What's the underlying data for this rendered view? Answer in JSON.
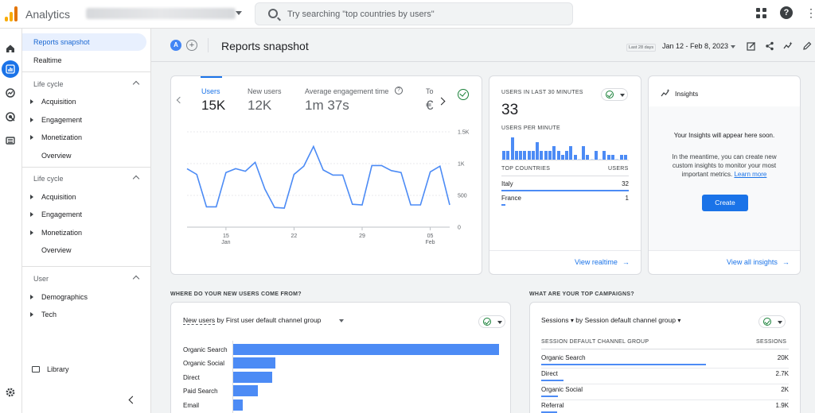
{
  "topbar": {
    "app_name": "Analytics",
    "account_name": "Tag Manager Italia - Server ...",
    "search_placeholder": "Try searching \"top countries by users\""
  },
  "sidebar": {
    "items": [
      {
        "label": "Reports snapshot",
        "active": true
      },
      {
        "label": "Realtime",
        "active": false
      }
    ],
    "section1": {
      "title": "Life cycle",
      "items": [
        "Acquisition",
        "Engagement",
        "Monetization"
      ],
      "overview": "Overview"
    },
    "section2": {
      "title": "Life cycle",
      "items": [
        "Acquisition",
        "Engagement",
        "Monetization"
      ],
      "overview": "Overview"
    },
    "section3": {
      "title": "User",
      "items": [
        "Demographics",
        "Tech"
      ]
    },
    "library": "Library"
  },
  "header": {
    "avatar_letter": "A",
    "add_label": "+",
    "title": "Reports snapshot",
    "date_chip": "Last 28 days",
    "date_range": "Jan 12 - Feb 8, 2023"
  },
  "metrics_card": {
    "tabs": [
      {
        "label": "Users",
        "value": "15K",
        "active": true
      },
      {
        "label": "New users",
        "value": "12K",
        "active": false
      },
      {
        "label": "Average engagement time",
        "value": "1m 37s",
        "active": false
      },
      {
        "label": "To",
        "value": "€",
        "active": false
      }
    ]
  },
  "chart_data": {
    "type": "line",
    "title": "",
    "xlabel": "",
    "ylabel": "",
    "x_ticks": [
      {
        "label": "15",
        "sub": "Jan",
        "day": 4
      },
      {
        "label": "22",
        "sub": "",
        "day": 11
      },
      {
        "label": "29",
        "sub": "",
        "day": 18
      },
      {
        "label": "05",
        "sub": "Feb",
        "day": 25
      }
    ],
    "y_ticks": [
      "1.5K",
      "1K",
      "500",
      "0"
    ],
    "ylim": [
      0,
      1500
    ],
    "series": [
      {
        "values": [
          920,
          830,
          320,
          320,
          860,
          920,
          880,
          1020,
          600,
          310,
          300,
          830,
          960,
          1270,
          900,
          820,
          820,
          360,
          350,
          970,
          970,
          890,
          860,
          350,
          350,
          870,
          960,
          350
        ]
      }
    ],
    "grid": true,
    "color": "#4c8bf5"
  },
  "realtime_card": {
    "title": "USERS IN LAST 30 MINUTES",
    "value": "33",
    "per_minute_label": "USERS PER MINUTE",
    "per_minute": [
      2,
      2,
      5,
      2,
      2,
      2,
      2,
      2,
      4,
      2,
      2,
      2,
      3,
      2,
      1,
      2,
      3,
      1,
      0,
      3,
      1,
      0,
      2,
      0,
      2,
      1,
      1,
      0,
      1,
      1
    ],
    "countries_header": "TOP COUNTRIES",
    "users_header": "USERS",
    "countries": [
      {
        "name": "Italy",
        "value": "32",
        "fraction": 1.0
      },
      {
        "name": "France",
        "value": "1",
        "fraction": 0.03
      }
    ],
    "link": "View realtime"
  },
  "insights_card": {
    "title": "Insights",
    "headline": "Your Insights will appear here soon.",
    "body": "In the meantime, you can create new custom insights to monitor your most important metrics.",
    "learn_more": "Learn more",
    "create_button": "Create",
    "link": "View all insights"
  },
  "new_users_section": {
    "heading": "WHERE DO YOUR NEW USERS COME FROM?",
    "metric": "New users",
    "dimension": "by First user default channel group",
    "bars": [
      {
        "label": "Organic Search",
        "fraction": 1.0
      },
      {
        "label": "Organic Social",
        "fraction": 0.16
      },
      {
        "label": "Direct",
        "fraction": 0.15
      },
      {
        "label": "Paid Search",
        "fraction": 0.095
      },
      {
        "label": "Email",
        "fraction": 0.04
      }
    ],
    "color": "#4c8bf5"
  },
  "campaigns_section": {
    "heading": "WHAT ARE YOUR TOP CAMPAIGNS?",
    "metric": "Sessions",
    "dimension": "by Session default channel group",
    "col_left": "SESSION DEFAULT CHANNEL GROUP",
    "col_right": "SESSIONS",
    "rows": [
      {
        "label": "Organic Search",
        "value": "20K",
        "fraction": 1.0
      },
      {
        "label": "Direct",
        "value": "2.7K",
        "fraction": 0.135
      },
      {
        "label": "Organic Social",
        "value": "2K",
        "fraction": 0.1
      },
      {
        "label": "Referral",
        "value": "1.9K",
        "fraction": 0.095
      }
    ]
  }
}
